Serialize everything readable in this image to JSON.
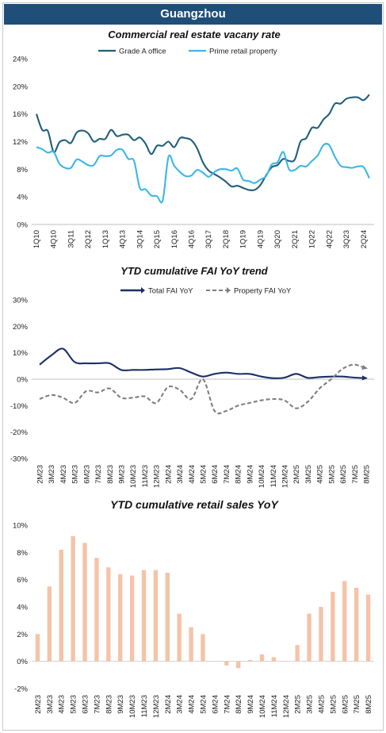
{
  "header": {
    "title": "Guangzhou"
  },
  "chart_data": [
    {
      "type": "line",
      "title": "Commercial real estate vacany rate",
      "x_tick_labels": [
        "1Q10",
        "4Q10",
        "3Q11",
        "2Q12",
        "1Q13",
        "4Q13",
        "3Q14",
        "2Q15",
        "1Q16",
        "4Q16",
        "3Q17",
        "2Q18",
        "1Q19",
        "4Q19",
        "3Q20",
        "2Q21",
        "1Q22",
        "4Q22",
        "3Q23",
        "2Q24"
      ],
      "y_ticks": [
        "0%",
        "4%",
        "8%",
        "12%",
        "16%",
        "20%",
        "24%"
      ],
      "ylim": [
        0,
        24
      ],
      "legend_position": "top",
      "series": [
        {
          "name": "Grade A office",
          "color": "#1f5f7a",
          "values": [
            16.0,
            13.7,
            13.5,
            10.5,
            11.9,
            12.2,
            11.8,
            13.3,
            13.6,
            13.2,
            12.0,
            12.4,
            12.4,
            13.7,
            12.8,
            13.0,
            13.0,
            12.2,
            12.6,
            11.7,
            10.2,
            11.4,
            11.4,
            12.0,
            11.2,
            12.5,
            12.5,
            12.2,
            11.0,
            9.0,
            7.8,
            7.3,
            6.8,
            6.2,
            5.5,
            5.6,
            5.3,
            5.0,
            5.0,
            5.7,
            7.1,
            8.3,
            8.6,
            9.5,
            9.2,
            9.4,
            12.0,
            12.5,
            14.0,
            14.0,
            15.2,
            16.0,
            17.5,
            17.5,
            18.2,
            18.4,
            18.4,
            18.0,
            18.8
          ]
        },
        {
          "name": "Prime retail property",
          "color": "#3cb7e6",
          "values": [
            11.2,
            10.9,
            10.4,
            10.5,
            8.8,
            8.2,
            8.2,
            9.4,
            9.1,
            8.6,
            8.6,
            9.9,
            9.9,
            10.0,
            10.8,
            10.8,
            9.5,
            9.2,
            5.3,
            5.1,
            4.2,
            4.1,
            3.5,
            9.8,
            8.5,
            7.6,
            7.0,
            7.1,
            7.9,
            7.5,
            6.9,
            7.6,
            8.0,
            8.0,
            7.8,
            8.1,
            6.5,
            6.3,
            6.0,
            6.5,
            7.0,
            8.7,
            9.0,
            10.5,
            8.0,
            7.9,
            8.5,
            8.4,
            9.2,
            10.0,
            11.5,
            11.5,
            9.8,
            8.5,
            8.3,
            8.2,
            8.4,
            8.3,
            6.7
          ]
        }
      ]
    },
    {
      "type": "line",
      "title": "YTD cumulative FAI YoY trend",
      "x_tick_labels": [
        "2M23",
        "3M23",
        "4M23",
        "5M23",
        "6M23",
        "7M23",
        "8M23",
        "9M23",
        "10M23",
        "11M23",
        "12M23",
        "2M24",
        "3M24",
        "4M24",
        "5M24",
        "6M24",
        "7M24",
        "8M24",
        "9M24",
        "10M24",
        "11M24",
        "12M24",
        "2M25",
        "3M25",
        "4M25",
        "5M25",
        "6M25",
        "7M25",
        "8M25"
      ],
      "y_ticks": [
        "-30%",
        "-20%",
        "-10%",
        "0%",
        "10%",
        "20%",
        "30%"
      ],
      "ylim": [
        -30,
        30
      ],
      "legend_position": "top",
      "series": [
        {
          "name": "Total FAI YoY",
          "color": "#1b2f66",
          "values": [
            5.5,
            9.0,
            11.5,
            6.5,
            6.0,
            6.0,
            6.0,
            3.5,
            3.5,
            3.5,
            3.7,
            3.8,
            4.2,
            2.5,
            1.0,
            2.0,
            2.5,
            2.0,
            2.0,
            1.0,
            0.4,
            0.6,
            2.0,
            0.5,
            0.8,
            1.0,
            1.0,
            0.6,
            0.4
          ]
        },
        {
          "name": "Property FAI YoY",
          "color": "#7f7f7f",
          "values": [
            -7.5,
            -6.0,
            -7.0,
            -9.0,
            -4.5,
            -5.0,
            -3.5,
            -7.0,
            -7.0,
            -6.5,
            -9.0,
            -3.0,
            -4.0,
            -7.5,
            0.0,
            -12.0,
            -12.0,
            -10.0,
            -9.0,
            -8.0,
            -7.5,
            -8.0,
            -11.0,
            -8.5,
            -3.5,
            0.0,
            4.0,
            5.5,
            4.0
          ]
        }
      ]
    },
    {
      "type": "bar",
      "title": "YTD cumulative retail sales YoY",
      "categories": [
        "2M23",
        "3M23",
        "4M23",
        "5M23",
        "6M23",
        "7M23",
        "8M23",
        "9M23",
        "10M23",
        "11M23",
        "12M23",
        "2M24",
        "3M24",
        "4M24",
        "5M24",
        "6M24",
        "7M24",
        "8M24",
        "9M24",
        "10M24",
        "11M24",
        "12M24",
        "2M25",
        "3M25",
        "4M25",
        "5M25",
        "6M25",
        "7M25",
        "8M25"
      ],
      "values": [
        2.0,
        5.5,
        8.2,
        9.2,
        8.7,
        7.6,
        6.9,
        6.4,
        6.3,
        6.7,
        6.7,
        6.5,
        3.5,
        2.5,
        2.0,
        0.0,
        -0.3,
        -0.5,
        0.1,
        0.5,
        0.3,
        0.0,
        1.2,
        3.5,
        4.0,
        5.1,
        5.9,
        5.4,
        4.9
      ],
      "y_ticks": [
        "-2%",
        "0%",
        "2%",
        "4%",
        "6%",
        "8%",
        "10%"
      ],
      "ylim": [
        -2,
        10
      ],
      "bar_color": "#f4c3a8"
    }
  ]
}
